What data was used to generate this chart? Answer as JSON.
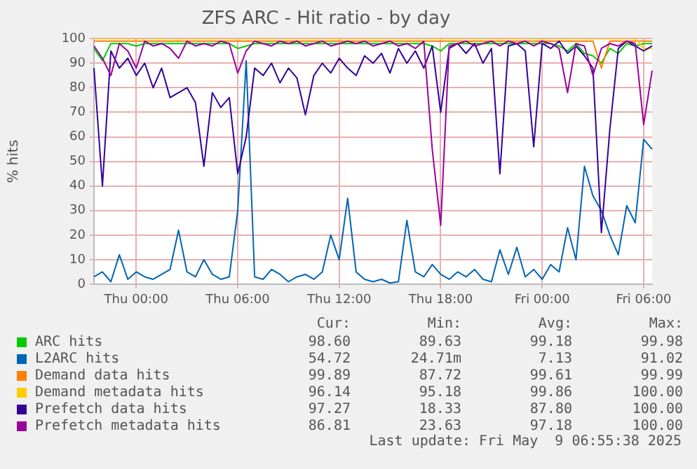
{
  "chart_data": {
    "type": "line",
    "title": "ZFS ARC - Hit ratio - by day",
    "ylabel": "% hits",
    "categories": [
      null,
      null,
      null,
      null,
      null,
      "Thu 00:00",
      null,
      null,
      null,
      null,
      null,
      null,
      null,
      null,
      null,
      null,
      null,
      "Thu 06:00",
      null,
      null,
      null,
      null,
      null,
      null,
      null,
      null,
      null,
      null,
      null,
      "Thu 12:00",
      null,
      null,
      null,
      null,
      null,
      null,
      null,
      null,
      null,
      null,
      null,
      "Thu 18:00",
      null,
      null,
      null,
      null,
      null,
      null,
      null,
      null,
      null,
      null,
      null,
      "Fri 00:00",
      null,
      null,
      null,
      null,
      null,
      null,
      null,
      null,
      null,
      null,
      null,
      "Fri 06:00",
      null
    ],
    "series": [
      {
        "name": "ARC hits",
        "color": "#00cc00",
        "values": [
          96,
          91,
          98,
          98,
          98,
          97,
          98,
          98,
          98,
          98,
          98,
          98,
          98,
          98,
          98,
          98,
          98,
          96,
          97,
          98,
          98,
          98,
          98,
          98,
          98,
          98,
          98,
          98,
          98,
          98,
          98,
          98,
          98,
          98,
          98,
          98,
          98,
          98,
          98,
          98,
          97,
          95,
          98,
          98,
          98,
          98,
          98,
          98,
          98,
          98,
          98,
          98,
          98,
          98,
          98,
          97,
          95,
          98,
          94,
          93,
          90,
          96,
          94,
          98,
          97,
          98,
          98
        ]
      },
      {
        "name": "L2ARC hits",
        "color": "#0066b3",
        "values": [
          3,
          5,
          1,
          12,
          2,
          5,
          3,
          2,
          4,
          6,
          22,
          5,
          3,
          10,
          4,
          2,
          3,
          30,
          91,
          3,
          2,
          6,
          4,
          1,
          3,
          4,
          2,
          5,
          20,
          10,
          35,
          5,
          2,
          1,
          2,
          0.5,
          1,
          26,
          5,
          3,
          8,
          4,
          2,
          5,
          3,
          6,
          2,
          1,
          14,
          4,
          15,
          3,
          6,
          2,
          8,
          5,
          23,
          10,
          48,
          36,
          30,
          20,
          12,
          32,
          25,
          59,
          55
        ]
      },
      {
        "name": "Demand data hits",
        "color": "#ff8000",
        "values": [
          99,
          99,
          99,
          99,
          99,
          99,
          99,
          99,
          99,
          99,
          99,
          99,
          99,
          99,
          99,
          99,
          99,
          99,
          99,
          99,
          99,
          99,
          99,
          99,
          99,
          99,
          99,
          99,
          99,
          99,
          99,
          99,
          99,
          99,
          99,
          99,
          99,
          99,
          99,
          99,
          99,
          99,
          99,
          99,
          99,
          99,
          99,
          99,
          99,
          99,
          99,
          99,
          99,
          99,
          99,
          99,
          99,
          99,
          99,
          99,
          88,
          99,
          99,
          99,
          99,
          99,
          99
        ]
      },
      {
        "name": "Demand metadata hits",
        "color": "#ffcc00",
        "values": [
          100,
          100,
          100,
          100,
          100,
          100,
          100,
          100,
          100,
          100,
          100,
          100,
          100,
          100,
          100,
          100,
          100,
          100,
          100,
          100,
          100,
          100,
          100,
          100,
          100,
          100,
          100,
          100,
          100,
          100,
          100,
          100,
          100,
          100,
          100,
          100,
          100,
          100,
          100,
          100,
          100,
          100,
          100,
          100,
          100,
          100,
          100,
          100,
          100,
          100,
          100,
          100,
          100,
          100,
          100,
          100,
          100,
          100,
          100,
          100,
          100,
          100,
          100,
          100,
          100,
          96,
          96
        ]
      },
      {
        "name": "Prefetch data hits",
        "color": "#330099",
        "values": [
          88,
          40,
          95,
          88,
          92,
          85,
          90,
          80,
          88,
          76,
          78,
          80,
          74,
          48,
          78,
          72,
          76,
          45,
          60,
          88,
          85,
          90,
          82,
          88,
          84,
          69,
          85,
          90,
          86,
          92,
          88,
          85,
          93,
          90,
          94,
          86,
          96,
          90,
          95,
          88,
          97,
          70,
          96,
          98,
          94,
          98,
          90,
          96,
          45,
          97,
          98,
          95,
          56,
          98,
          96,
          99,
          94,
          97,
          93,
          88,
          21,
          63,
          96,
          99,
          97,
          95,
          97
        ]
      },
      {
        "name": "Prefetch metadata hits",
        "color": "#990099",
        "values": [
          97,
          92,
          85,
          98,
          95,
          88,
          99,
          97,
          98,
          96,
          92,
          99,
          97,
          98,
          97,
          99,
          98,
          86,
          95,
          99,
          98,
          97,
          99,
          98,
          99,
          97,
          98,
          99,
          97,
          98,
          99,
          98,
          99,
          97,
          98,
          99,
          97,
          98,
          96,
          99,
          55,
          24,
          97,
          98,
          99,
          97,
          98,
          99,
          97,
          99,
          98,
          99,
          97,
          99,
          98,
          96,
          78,
          98,
          97,
          85,
          96,
          98,
          97,
          99,
          98,
          65,
          87
        ]
      }
    ],
    "ylim": [
      0,
      100
    ],
    "yticks": [
      0,
      10,
      20,
      30,
      40,
      50,
      60,
      70,
      80,
      90,
      100
    ],
    "grid": true,
    "legend": "bottom",
    "marker": "none",
    "line_style": "solid",
    "annotations": [
      "Cur:",
      "Min:",
      "Avg:",
      "Max:",
      "98.60",
      "89.63",
      "99.18",
      "99.98",
      "54.72",
      "24.71m",
      "7.13",
      "91.02",
      "99.89",
      "87.72",
      "99.61",
      "99.99",
      "96.14",
      "95.18",
      "99.86",
      "100.00",
      "97.27",
      "18.33",
      "87.80",
      "100.00",
      "86.81",
      "23.63",
      "97.18",
      "100.00",
      "Last update: Fri May  9 06:55:38 2025"
    ]
  }
}
